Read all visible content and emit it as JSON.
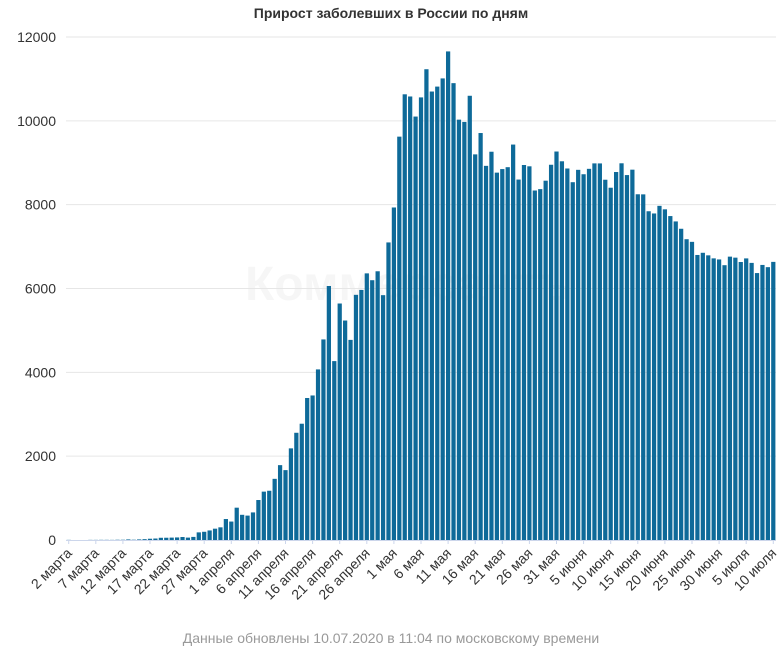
{
  "chart_data": {
    "type": "bar",
    "title": "Прирост заболевших в России по дням",
    "xlabel": "",
    "ylabel": "",
    "ylim": [
      0,
      12000
    ],
    "yticks": [
      0,
      2000,
      4000,
      6000,
      8000,
      10000,
      12000
    ],
    "grid": true,
    "legend": "none",
    "bar_color": "#0e6a99",
    "watermark": "Коммерсантъ",
    "x_tick_labels": [
      "2 марта",
      "7 марта",
      "12 марта",
      "17 марта",
      "22 марта",
      "27 марта",
      "1 апреля",
      "6 апреля",
      "11 апреля",
      "16 апреля",
      "21 апреля",
      "26 апреля",
      "1 мая",
      "6 мая",
      "11 мая",
      "16 мая",
      "21 мая",
      "26 мая",
      "31 мая",
      "5 июня",
      "10 июня",
      "15 июня",
      "20 июня",
      "25 июня",
      "30 июня",
      "5 июля",
      "10 июля"
    ],
    "x_tick_every": 5,
    "first_date": "2 марта",
    "last_date": "10 июля",
    "values": [
      3,
      0,
      0,
      0,
      3,
      3,
      4,
      4,
      3,
      6,
      6,
      14,
      7,
      14,
      20,
      30,
      35,
      53,
      54,
      57,
      61,
      71,
      57,
      74,
      182,
      196,
      228,
      270,
      302,
      500,
      440,
      771,
      601,
      582,
      658,
      954,
      1154,
      1175,
      1459,
      1786,
      1667,
      2186,
      2558,
      2774,
      3388,
      3448,
      4070,
      4785,
      6060,
      4268,
      5642,
      5236,
      4774,
      5849,
      5966,
      6361,
      6198,
      6411,
      5841,
      7099,
      7933,
      9623,
      10633,
      10581,
      10102,
      10559,
      11231,
      10699,
      10817,
      11012,
      11656,
      10899,
      10028,
      9974,
      10598,
      9200,
      9709,
      8926,
      9263,
      8764,
      8849,
      8894,
      9434,
      8599,
      8946,
      8915,
      8338,
      8371,
      8572,
      8952,
      9268,
      9035,
      8863,
      8536,
      8831,
      8726,
      8855,
      8985,
      8984,
      8595,
      8404,
      8779,
      8987,
      8706,
      8835,
      8248,
      8246,
      7843,
      7790,
      7972,
      7889,
      7728,
      7600,
      7425,
      7176,
      7113,
      6800,
      6852,
      6791,
      6719,
      6693,
      6556,
      6760,
      6736,
      6632,
      6718,
      6611,
      6368,
      6562,
      6509,
      6635
    ]
  },
  "footer": {
    "note": "Данные обновлены 10.07.2020 в 11:04 по московскому времени"
  }
}
